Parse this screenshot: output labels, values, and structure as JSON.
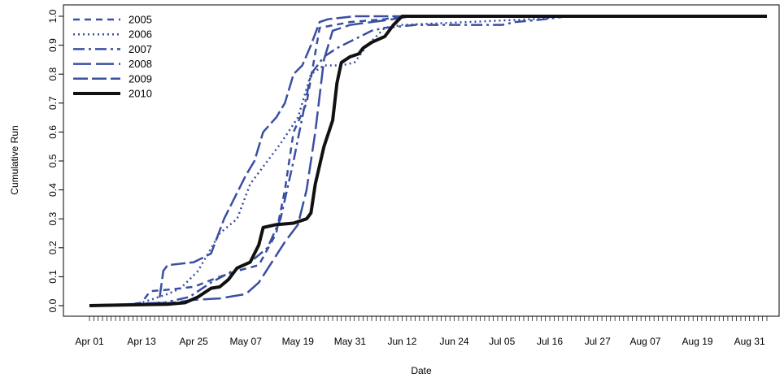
{
  "chart_data": {
    "type": "line",
    "title": "",
    "xlabel": "Date",
    "ylabel": "Cumulative Run",
    "x_tick_labels": [
      "Apr 01",
      "Apr 13",
      "Apr 25",
      "May 07",
      "May 19",
      "May 31",
      "Jun 12",
      "Jun 24",
      "Jul 05",
      "Jul 16",
      "Jul 27",
      "Aug 07",
      "Aug 19",
      "Aug 31"
    ],
    "x_tick_dates": [
      "2010-04-01",
      "2010-04-13",
      "2010-04-25",
      "2010-05-07",
      "2010-05-19",
      "2010-05-31",
      "2010-06-12",
      "2010-06-24",
      "2010-07-05",
      "2010-07-16",
      "2010-07-27",
      "2010-08-07",
      "2010-08-19",
      "2010-08-31"
    ],
    "xlim": [
      "2010-03-31",
      "2010-09-05"
    ],
    "y_ticks": [
      "0.0",
      "0.1",
      "0.2",
      "0.3",
      "0.4",
      "0.5",
      "0.6",
      "0.7",
      "0.8",
      "0.9",
      "1.0"
    ],
    "ylim": [
      0,
      1
    ],
    "grid": false,
    "legend_position": "top-left",
    "series": [
      {
        "name": "2005",
        "color": "#3A4FA0",
        "dash": "8,6",
        "width": 2.5,
        "points": [
          [
            "2010-04-01",
            0.0
          ],
          [
            "2010-04-10",
            0.005
          ],
          [
            "2010-04-13",
            0.01
          ],
          [
            "2010-04-15",
            0.05
          ],
          [
            "2010-04-19",
            0.055
          ],
          [
            "2010-04-25",
            0.065
          ],
          [
            "2010-05-01",
            0.1
          ],
          [
            "2010-05-05",
            0.12
          ],
          [
            "2010-05-10",
            0.14
          ],
          [
            "2010-05-14",
            0.25
          ],
          [
            "2010-05-16",
            0.4
          ],
          [
            "2010-05-18",
            0.6
          ],
          [
            "2010-05-21",
            0.7
          ],
          [
            "2010-05-24",
            0.96
          ],
          [
            "2010-05-31",
            0.98
          ],
          [
            "2010-06-08",
            0.99
          ],
          [
            "2010-06-12",
            1.0
          ],
          [
            "2010-09-04",
            1.0
          ]
        ]
      },
      {
        "name": "2006",
        "color": "#3A4FA0",
        "dash": "2,4",
        "width": 2.5,
        "points": [
          [
            "2010-04-01",
            0.0
          ],
          [
            "2010-04-12",
            0.005
          ],
          [
            "2010-04-15",
            0.02
          ],
          [
            "2010-04-19",
            0.04
          ],
          [
            "2010-04-22",
            0.06
          ],
          [
            "2010-04-26",
            0.12
          ],
          [
            "2010-05-01",
            0.25
          ],
          [
            "2010-05-05",
            0.3
          ],
          [
            "2010-05-08",
            0.42
          ],
          [
            "2010-05-10",
            0.46
          ],
          [
            "2010-05-12",
            0.5
          ],
          [
            "2010-05-15",
            0.56
          ],
          [
            "2010-05-19",
            0.65
          ],
          [
            "2010-05-22",
            0.8
          ],
          [
            "2010-05-25",
            0.83
          ],
          [
            "2010-05-29",
            0.83
          ],
          [
            "2010-06-01",
            0.84
          ],
          [
            "2010-06-04",
            0.9
          ],
          [
            "2010-06-08",
            0.96
          ],
          [
            "2010-06-12",
            0.97
          ],
          [
            "2010-07-12",
            0.99
          ],
          [
            "2010-07-20",
            1.0
          ],
          [
            "2010-09-04",
            1.0
          ]
        ]
      },
      {
        "name": "2007",
        "color": "#3A4FA0",
        "dash": "14,5,3,5",
        "width": 2.5,
        "points": [
          [
            "2010-04-01",
            0.0
          ],
          [
            "2010-04-12",
            0.003
          ],
          [
            "2010-04-18",
            0.01
          ],
          [
            "2010-04-24",
            0.03
          ],
          [
            "2010-04-29",
            0.08
          ],
          [
            "2010-05-04",
            0.12
          ],
          [
            "2010-05-08",
            0.15
          ],
          [
            "2010-05-12",
            0.2
          ],
          [
            "2010-05-15",
            0.3
          ],
          [
            "2010-05-18",
            0.5
          ],
          [
            "2010-05-20",
            0.65
          ],
          [
            "2010-05-22",
            0.8
          ],
          [
            "2010-05-25",
            0.86
          ],
          [
            "2010-05-28",
            0.89
          ],
          [
            "2010-06-01",
            0.92
          ],
          [
            "2010-06-05",
            0.95
          ],
          [
            "2010-06-08",
            0.96
          ],
          [
            "2010-06-15",
            0.97
          ],
          [
            "2010-06-25",
            0.97
          ],
          [
            "2010-07-05",
            0.97
          ],
          [
            "2010-07-08",
            0.98
          ],
          [
            "2010-07-15",
            0.99
          ],
          [
            "2010-07-20",
            1.0
          ],
          [
            "2010-09-04",
            1.0
          ]
        ]
      },
      {
        "name": "2008",
        "color": "#3A4FA0",
        "dash": "22,6",
        "width": 2.5,
        "points": [
          [
            "2010-04-01",
            0.0
          ],
          [
            "2010-04-13",
            0.003
          ],
          [
            "2010-04-20",
            0.01
          ],
          [
            "2010-04-25",
            0.02
          ],
          [
            "2010-05-01",
            0.025
          ],
          [
            "2010-05-07",
            0.04
          ],
          [
            "2010-05-10",
            0.08
          ],
          [
            "2010-05-13",
            0.15
          ],
          [
            "2010-05-16",
            0.22
          ],
          [
            "2010-05-19",
            0.28
          ],
          [
            "2010-05-21",
            0.4
          ],
          [
            "2010-05-23",
            0.6
          ],
          [
            "2010-05-25",
            0.85
          ],
          [
            "2010-05-27",
            0.95
          ],
          [
            "2010-05-31",
            0.97
          ],
          [
            "2010-06-05",
            0.98
          ],
          [
            "2010-06-10",
            0.99
          ],
          [
            "2010-06-14",
            1.0
          ],
          [
            "2010-09-04",
            1.0
          ]
        ]
      },
      {
        "name": "2009",
        "color": "#3A4FA0",
        "dash": "18,5",
        "width": 2.5,
        "points": [
          [
            "2010-04-01",
            0.0
          ],
          [
            "2010-04-10",
            0.005
          ],
          [
            "2010-04-17",
            0.01
          ],
          [
            "2010-04-18",
            0.12
          ],
          [
            "2010-04-19",
            0.14
          ],
          [
            "2010-04-25",
            0.15
          ],
          [
            "2010-04-29",
            0.18
          ],
          [
            "2010-05-02",
            0.3
          ],
          [
            "2010-05-04",
            0.36
          ],
          [
            "2010-05-07",
            0.45
          ],
          [
            "2010-05-09",
            0.5
          ],
          [
            "2010-05-11",
            0.6
          ],
          [
            "2010-05-14",
            0.65
          ],
          [
            "2010-05-16",
            0.7
          ],
          [
            "2010-05-18",
            0.8
          ],
          [
            "2010-05-20",
            0.83
          ],
          [
            "2010-05-22",
            0.9
          ],
          [
            "2010-05-24",
            0.98
          ],
          [
            "2010-05-26",
            0.99
          ],
          [
            "2010-06-01",
            1.0
          ],
          [
            "2010-09-04",
            1.0
          ]
        ]
      },
      {
        "name": "2010",
        "color": "#111111",
        "dash": "",
        "width": 4,
        "points": [
          [
            "2010-04-01",
            0.0
          ],
          [
            "2010-04-19",
            0.005
          ],
          [
            "2010-04-23",
            0.01
          ],
          [
            "2010-04-26",
            0.03
          ],
          [
            "2010-04-29",
            0.06
          ],
          [
            "2010-05-01",
            0.065
          ],
          [
            "2010-05-03",
            0.09
          ],
          [
            "2010-05-05",
            0.13
          ],
          [
            "2010-05-08",
            0.15
          ],
          [
            "2010-05-10",
            0.21
          ],
          [
            "2010-05-11",
            0.27
          ],
          [
            "2010-05-14",
            0.28
          ],
          [
            "2010-05-18",
            0.285
          ],
          [
            "2010-05-21",
            0.3
          ],
          [
            "2010-05-22",
            0.32
          ],
          [
            "2010-05-23",
            0.42
          ],
          [
            "2010-05-25",
            0.55
          ],
          [
            "2010-05-27",
            0.64
          ],
          [
            "2010-05-28",
            0.77
          ],
          [
            "2010-05-29",
            0.84
          ],
          [
            "2010-05-31",
            0.86
          ],
          [
            "2010-06-02",
            0.87
          ],
          [
            "2010-06-03",
            0.89
          ],
          [
            "2010-06-05",
            0.91
          ],
          [
            "2010-06-08",
            0.93
          ],
          [
            "2010-06-10",
            0.97
          ],
          [
            "2010-06-12",
            1.0
          ],
          [
            "2010-09-04",
            1.0
          ]
        ]
      }
    ]
  }
}
